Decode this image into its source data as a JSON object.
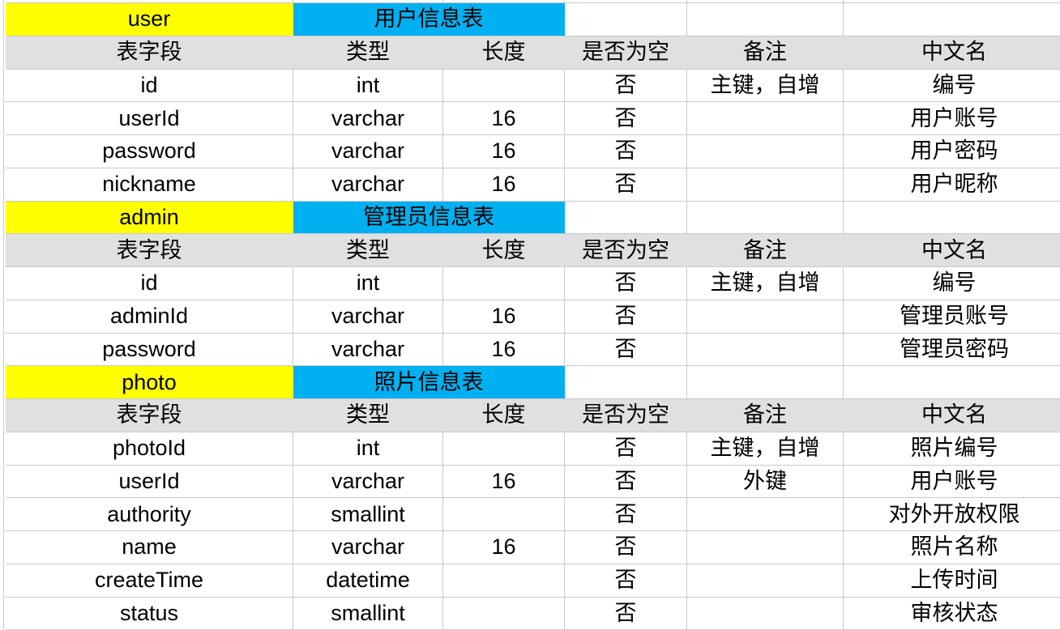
{
  "colors": {
    "table_name_fill": "#ffff00",
    "table_title_fill": "#00b0f0",
    "header_fill": "#e0e0e0",
    "gridline": "#c9c9c9",
    "text": "#000000"
  },
  "columns": [
    "表字段",
    "类型",
    "长度",
    "是否为空",
    "备注",
    "中文名"
  ],
  "tables": [
    {
      "name": "user",
      "title_cn": "用户信息表",
      "rows": [
        [
          "id",
          "int",
          "",
          "否",
          "主键，自增",
          "编号"
        ],
        [
          "userId",
          "varchar",
          "16",
          "否",
          "",
          "用户账号"
        ],
        [
          "password",
          "varchar",
          "16",
          "否",
          "",
          "用户密码"
        ],
        [
          "nickname",
          "varchar",
          "16",
          "否",
          "",
          "用户昵称"
        ]
      ]
    },
    {
      "name": "admin",
      "title_cn": "管理员信息表",
      "rows": [
        [
          "id",
          "int",
          "",
          "否",
          "主键，自增",
          "编号"
        ],
        [
          "adminId",
          "varchar",
          "16",
          "否",
          "",
          "管理员账号"
        ],
        [
          "password",
          "varchar",
          "16",
          "否",
          "",
          "管理员密码"
        ]
      ]
    },
    {
      "name": "photo",
      "title_cn": "照片信息表",
      "rows": [
        [
          "photoId",
          "int",
          "",
          "否",
          "主键，自增",
          "照片编号"
        ],
        [
          "userId",
          "varchar",
          "16",
          "否",
          "外键",
          "用户账号"
        ],
        [
          "authority",
          "smallint",
          "",
          "否",
          "",
          "对外开放权限"
        ],
        [
          "name",
          "varchar",
          "16",
          "否",
          "",
          "照片名称"
        ],
        [
          "createTime",
          "datetime",
          "",
          "否",
          "",
          "上传时间"
        ],
        [
          "status",
          "smallint",
          "",
          "否",
          "",
          "审核状态"
        ]
      ]
    }
  ]
}
